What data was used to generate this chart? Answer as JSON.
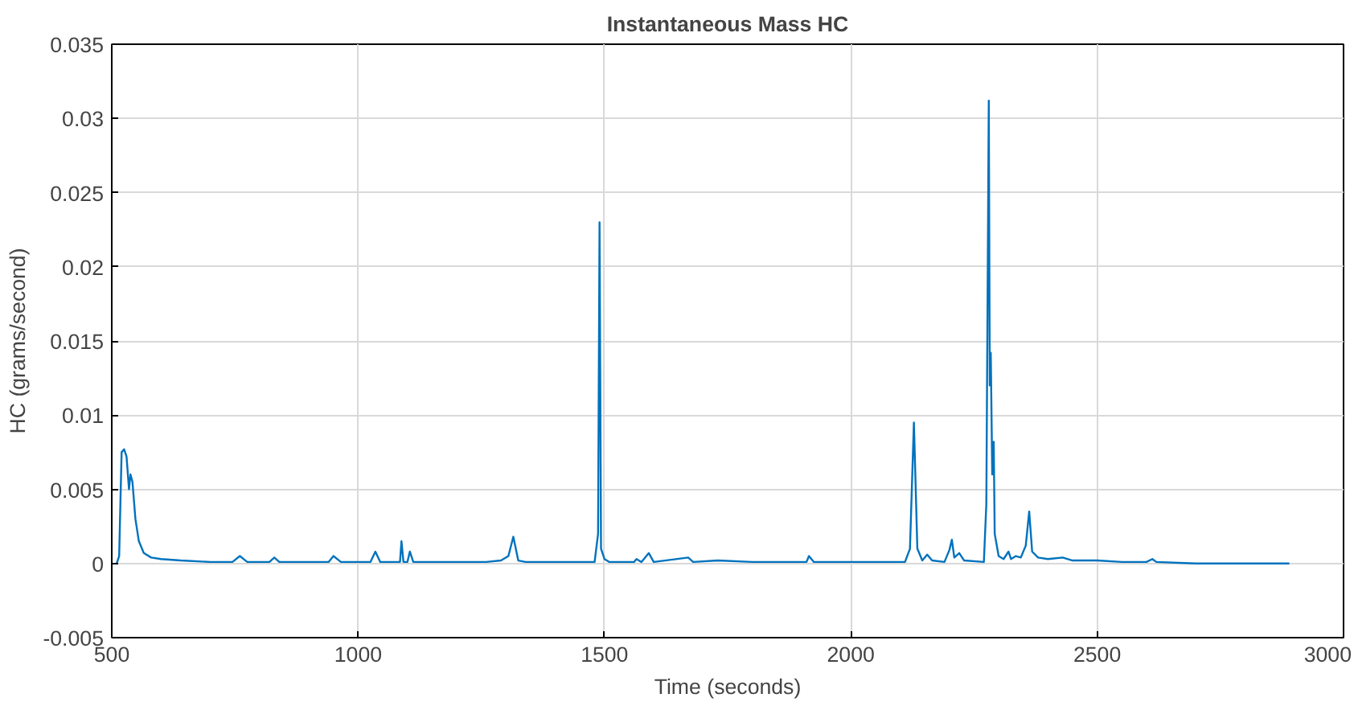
{
  "chart_data": {
    "type": "line",
    "title": "Instantaneous Mass HC",
    "xlabel": "Time (seconds)",
    "ylabel": "HC (grams/second)",
    "xlim": [
      500,
      3000
    ],
    "ylim": [
      -0.005,
      0.035
    ],
    "xticks": [
      500,
      1000,
      1500,
      2000,
      2500,
      3000
    ],
    "yticks": [
      -0.005,
      0,
      0.005,
      0.01,
      0.015,
      0.02,
      0.025,
      0.03,
      0.035
    ],
    "grid": true,
    "series": [
      {
        "color": "#0072bd",
        "x": [
          510,
          515,
          520,
          525,
          530,
          535,
          538,
          542,
          548,
          555,
          565,
          580,
          600,
          640,
          700,
          745,
          760,
          775,
          820,
          830,
          840,
          940,
          950,
          965,
          1025,
          1035,
          1045,
          1085,
          1088,
          1092,
          1100,
          1105,
          1112,
          1200,
          1260,
          1290,
          1305,
          1315,
          1325,
          1340,
          1480,
          1487,
          1490,
          1493,
          1500,
          1510,
          1560,
          1565,
          1575,
          1590,
          1600,
          1670,
          1680,
          1730,
          1800,
          1910,
          1915,
          1925,
          2000,
          2010,
          2110,
          2120,
          2128,
          2135,
          2145,
          2155,
          2165,
          2190,
          2200,
          2205,
          2210,
          2220,
          2230,
          2270,
          2275,
          2280,
          2282,
          2284,
          2287,
          2290,
          2292,
          2300,
          2310,
          2320,
          2325,
          2335,
          2345,
          2355,
          2362,
          2368,
          2380,
          2400,
          2430,
          2450,
          2500,
          2550,
          2600,
          2612,
          2620,
          2700,
          2890
        ],
        "values": [
          0,
          0.0005,
          0.0075,
          0.0077,
          0.0072,
          0.005,
          0.006,
          0.0055,
          0.003,
          0.0015,
          0.0007,
          0.0004,
          0.0003,
          0.0002,
          0.0001,
          0.0001,
          0.0005,
          0.0001,
          0.0001,
          0.0004,
          0.0001,
          0.0001,
          0.0005,
          0.0001,
          0.0001,
          0.0008,
          0.0001,
          0.0001,
          0.0015,
          0.0001,
          0.0001,
          0.0008,
          0.0001,
          0.0001,
          0.0001,
          0.0002,
          0.0005,
          0.0018,
          0.0002,
          0.0001,
          0.0001,
          0.002,
          0.023,
          0.001,
          0.0003,
          0.0001,
          0.0001,
          0.0003,
          0.0001,
          0.0007,
          0.0001,
          0.0004,
          0.0001,
          0.0002,
          0.0001,
          0.0001,
          0.0005,
          0.0001,
          0.0001,
          0.0001,
          0.0001,
          0.001,
          0.0095,
          0.001,
          0.0002,
          0.0006,
          0.0002,
          0.0001,
          0.0009,
          0.0016,
          0.0004,
          0.0007,
          0.0002,
          0.0001,
          0.004,
          0.0312,
          0.012,
          0.0142,
          0.006,
          0.0082,
          0.002,
          0.0005,
          0.0003,
          0.0008,
          0.0003,
          0.0005,
          0.0004,
          0.0012,
          0.0035,
          0.0008,
          0.0004,
          0.0003,
          0.0004,
          0.0002,
          0.0002,
          0.0001,
          0.0001,
          0.0003,
          0.0001,
          0,
          0
        ]
      }
    ]
  }
}
